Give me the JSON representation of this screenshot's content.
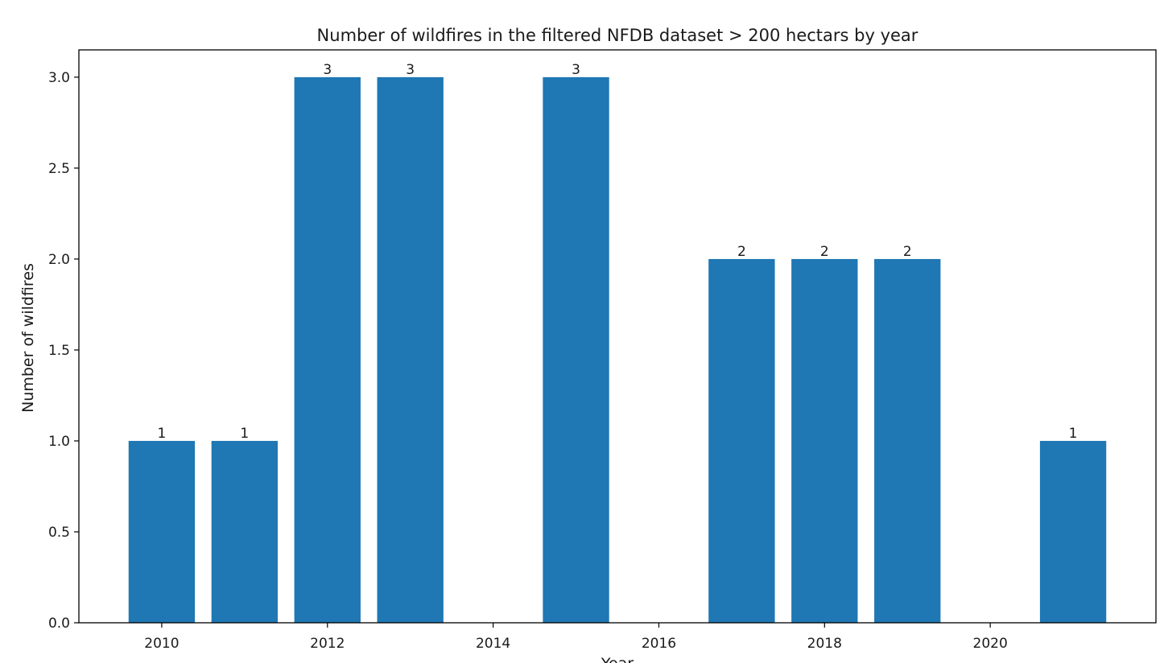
{
  "chart_data": {
    "type": "bar",
    "title": "Number of wildfires in the filtered NFDB dataset > 200 hectars by year",
    "xlabel": "Year",
    "ylabel": "Number of wildfires",
    "categories": [
      "2010",
      "2011",
      "2012",
      "2013",
      "2015",
      "2017",
      "2018",
      "2019",
      "2021"
    ],
    "x": [
      2010,
      2011,
      2012,
      2013,
      2015,
      2017,
      2018,
      2019,
      2021
    ],
    "values": [
      1,
      1,
      3,
      3,
      3,
      2,
      2,
      2,
      1
    ],
    "data_labels": [
      "1",
      "1",
      "3",
      "3",
      "3",
      "2",
      "2",
      "2",
      "1"
    ],
    "xlim": [
      2009.0,
      2022.0
    ],
    "ylim": [
      0,
      3.15
    ],
    "xticks": [
      2010,
      2012,
      2014,
      2016,
      2018,
      2020
    ],
    "xtick_labels": [
      "2010",
      "2012",
      "2014",
      "2016",
      "2018",
      "2020"
    ],
    "yticks": [
      0.0,
      0.5,
      1.0,
      1.5,
      2.0,
      2.5,
      3.0
    ],
    "ytick_labels": [
      "0.0",
      "0.5",
      "1.0",
      "1.5",
      "2.0",
      "2.5",
      "3.0"
    ],
    "bar_width_years": 0.8,
    "grid": false,
    "legend": "none",
    "bar_color": "#1f77b4"
  }
}
